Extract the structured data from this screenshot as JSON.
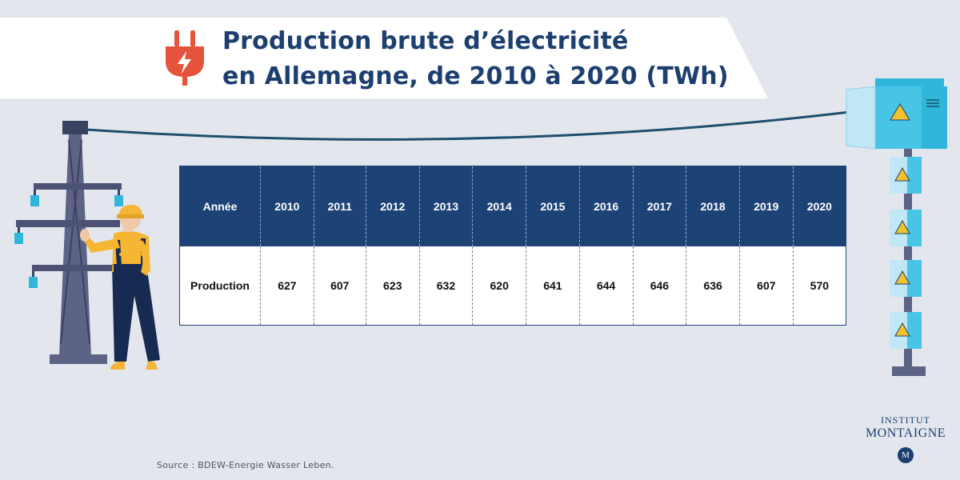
{
  "title": {
    "line1": "Production brute d’électricité",
    "line2": "en Allemagne, de 2010 à 2020 (TWh)"
  },
  "icons": {
    "title_icon": "electric-plug-icon",
    "pylon": "power-pylon-illustration",
    "worker": "electrician-worker-illustration",
    "cabinets": "electrical-cabinet-illustration"
  },
  "colors": {
    "header_bg": "#1d4276",
    "title_text": "#1d3f70",
    "plug": "#e5533d",
    "background": "#e3e7ed"
  },
  "chart_data": {
    "type": "table",
    "row_header_label": "Année",
    "value_row_label": "Production",
    "x": [
      "2010",
      "2011",
      "2012",
      "2013",
      "2014",
      "2015",
      "2016",
      "2017",
      "2018",
      "2019",
      "2020"
    ],
    "values": [
      627,
      607,
      623,
      632,
      620,
      641,
      644,
      646,
      636,
      607,
      570
    ],
    "unit": "TWh"
  },
  "source": "Source : BDEW-Energie Wasser Leben.",
  "brand": {
    "line1": "INSTITUT",
    "line2": "MONTAIGNE",
    "logo_letters": "M"
  }
}
